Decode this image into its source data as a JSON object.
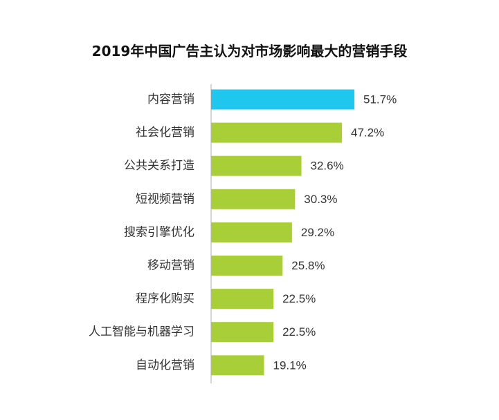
{
  "chart_data": {
    "type": "bar",
    "orientation": "horizontal",
    "title": "2019年中国广告主认为对市场影响最大的营销手段",
    "categories": [
      "内容营销",
      "社会化营销",
      "公共关系打造",
      "短视频营销",
      "搜索引擎优化",
      "移动营销",
      "程序化购买",
      "人工智能与机器学习",
      "自动化营销"
    ],
    "values": [
      51.7,
      47.2,
      32.6,
      30.3,
      29.2,
      25.8,
      22.5,
      22.5,
      19.1
    ],
    "value_labels": [
      "51.7%",
      "47.2%",
      "32.6%",
      "30.3%",
      "29.2%",
      "25.8%",
      "22.5%",
      "22.5%",
      "19.1%"
    ],
    "xlim": [
      0,
      51.7
    ],
    "colors": {
      "highlight": "#1fc6ee",
      "default": "#a8cf38",
      "axis": "#c8c8c8"
    },
    "highlight_index": 0,
    "grid": false,
    "legend": "none"
  }
}
